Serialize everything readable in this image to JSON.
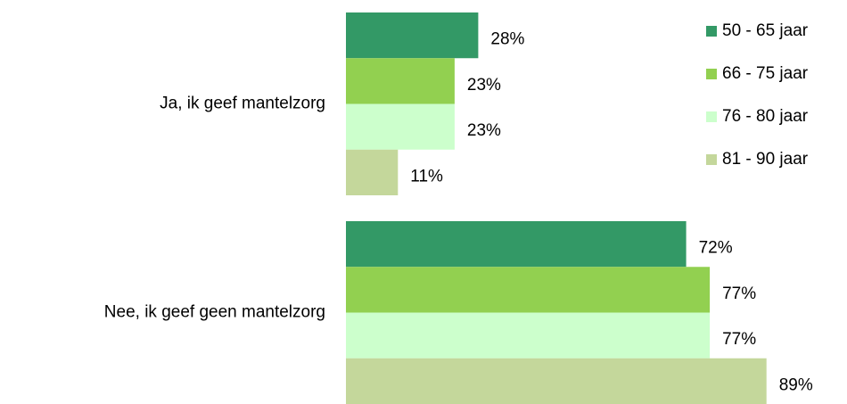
{
  "chart_data": {
    "type": "bar",
    "orientation": "horizontal",
    "categories": [
      "Ja, ik geef mantelzorg",
      "Nee, ik geef geen mantelzorg"
    ],
    "series": [
      {
        "name": "50 - 65 jaar",
        "color": "#339966",
        "values": [
          28,
          72
        ],
        "value_labels": [
          "28%",
          "72%"
        ]
      },
      {
        "name": "66 - 75 jaar",
        "color": "#92d050",
        "values": [
          23,
          77
        ],
        "value_labels": [
          "23%",
          "77%"
        ]
      },
      {
        "name": "76 - 80 jaar",
        "color": "#ccffcc",
        "values": [
          23,
          77
        ],
        "value_labels": [
          "23%",
          "77%"
        ]
      },
      {
        "name": "81 - 90 jaar",
        "color": "#c4d79b",
        "values": [
          11,
          89
        ],
        "value_labels": [
          "11%",
          "89%"
        ]
      }
    ],
    "legend": "right"
  }
}
